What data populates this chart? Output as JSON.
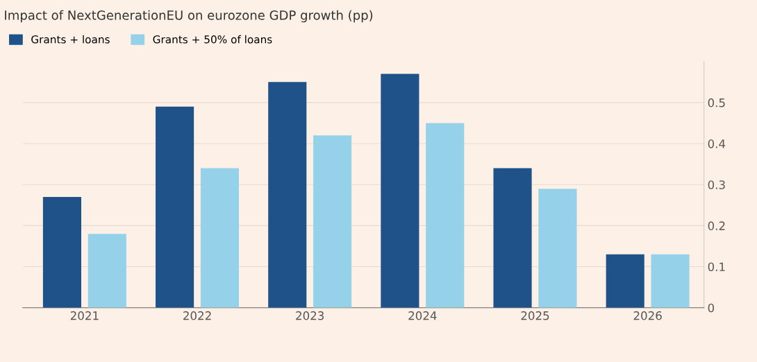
{
  "chart_data": {
    "type": "bar",
    "title": "Impact of NextGenerationEU on eurozone GDP growth (pp)",
    "categories": [
      "2021",
      "2022",
      "2023",
      "2024",
      "2025",
      "2026"
    ],
    "series": [
      {
        "name": "Grants + loans",
        "color": "#1f5289",
        "values": [
          0.27,
          0.49,
          0.55,
          0.57,
          0.34,
          0.13
        ]
      },
      {
        "name": "Grants + 50% of loans",
        "color": "#95d1e8",
        "values": [
          0.18,
          0.34,
          0.42,
          0.45,
          0.29,
          0.13
        ]
      }
    ],
    "ylim": [
      0,
      0.6
    ],
    "yticks": [
      0,
      0.1,
      0.2,
      0.3,
      0.4,
      0.5
    ],
    "grid": "y",
    "legend": "top left"
  }
}
